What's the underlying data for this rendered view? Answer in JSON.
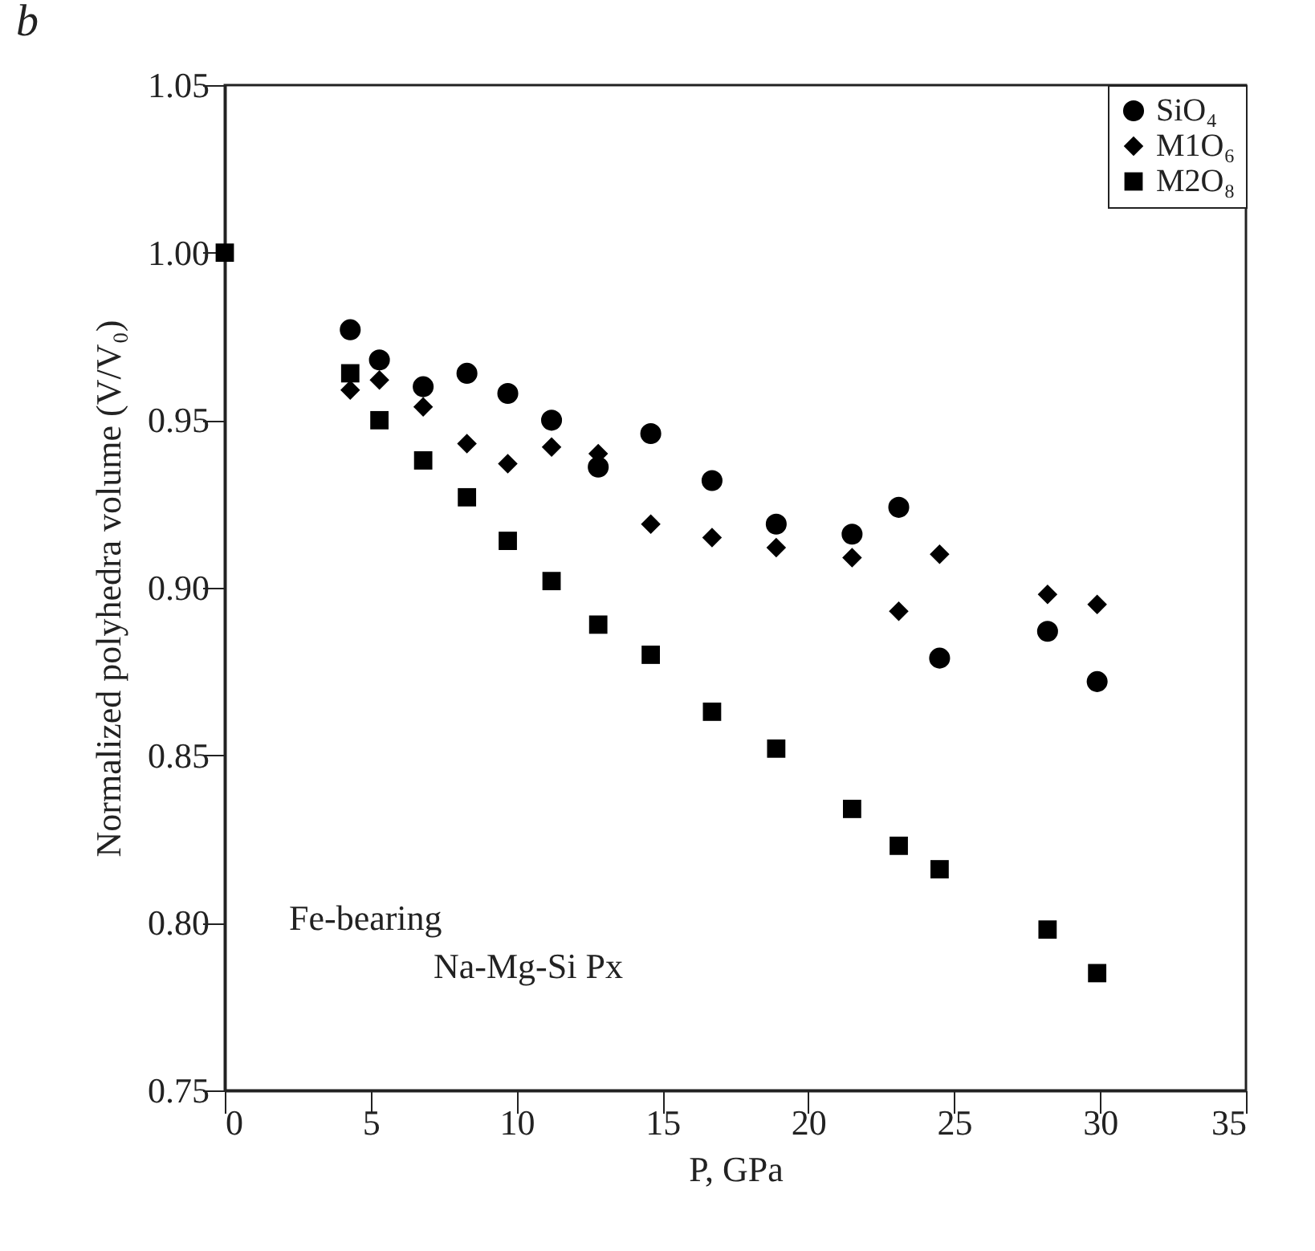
{
  "chart_data": {
    "type": "scatter",
    "title": "b",
    "xlabel": "P, GPa",
    "ylabel": "Normalized polyhedra volume (V/V₀)",
    "xlim": [
      0,
      35
    ],
    "xticks": [
      0,
      5,
      10,
      15,
      20,
      25,
      30,
      35
    ],
    "ylim": [
      0.75,
      1.05
    ],
    "yticks": [
      0.75,
      {
        "value": 0.8,
        "label": "0.80"
      },
      0.85,
      {
        "value": 0.9,
        "label": "0.90"
      },
      0.95,
      {
        "value": 1.0,
        "label": "1.00"
      },
      1.05
    ],
    "legend": "top right",
    "grid": false,
    "annotations": [
      "Fe-bearing",
      "Na-Mg-Si Px"
    ],
    "series": [
      {
        "name": "SiO₄",
        "color": "#000000",
        "marker": "circle",
        "x": [
          4.3,
          5.3,
          6.8,
          8.3,
          9.7,
          11.2,
          12.8,
          14.6,
          16.7,
          18.9,
          21.5,
          23.1,
          24.5,
          28.2,
          29.9
        ],
        "values": [
          0.977,
          0.968,
          0.96,
          0.964,
          0.958,
          0.95,
          0.936,
          0.946,
          0.932,
          0.919,
          0.916,
          0.924,
          0.879,
          0.887,
          0.872
        ]
      },
      {
        "name": "M1O₆",
        "color": "#000000",
        "marker": "diamond",
        "x": [
          4.3,
          5.3,
          6.8,
          8.3,
          9.7,
          11.2,
          12.8,
          14.6,
          16.7,
          18.9,
          21.5,
          23.1,
          24.5,
          28.2,
          29.9
        ],
        "values": [
          0.959,
          0.962,
          0.954,
          0.943,
          0.937,
          0.942,
          0.94,
          0.919,
          0.915,
          0.912,
          0.909,
          0.893,
          0.91,
          0.898,
          0.895
        ]
      },
      {
        "name": "M2O₈",
        "color": "#000000",
        "marker": "square",
        "x": [
          0,
          4.3,
          5.3,
          6.8,
          8.3,
          9.7,
          11.2,
          12.8,
          14.6,
          16.7,
          18.9,
          21.5,
          23.1,
          24.5,
          28.2,
          29.9
        ],
        "values": [
          1.0,
          0.964,
          0.95,
          0.938,
          0.927,
          0.914,
          0.902,
          0.889,
          0.88,
          0.863,
          0.852,
          0.834,
          0.823,
          0.816,
          0.798,
          0.785
        ]
      }
    ]
  }
}
